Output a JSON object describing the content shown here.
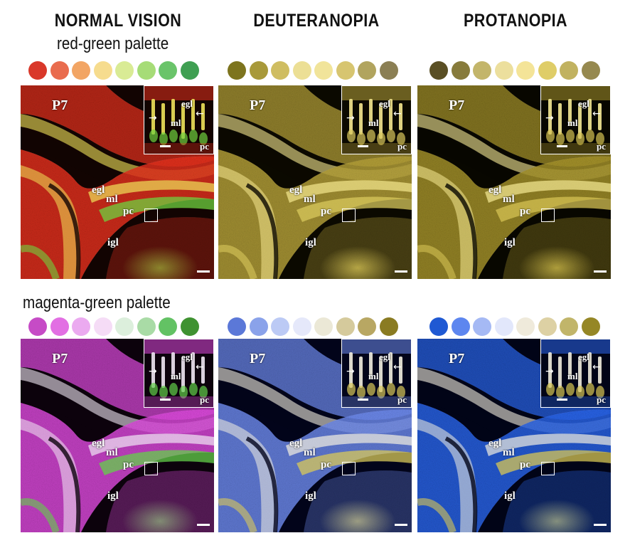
{
  "columns": [
    {
      "title": "NORMAL VISION"
    },
    {
      "title": "DEUTERANOPIA"
    },
    {
      "title": "PROTANOPIA"
    }
  ],
  "palettes": [
    {
      "label": "red-green palette",
      "swatches": [
        [
          "#d9382a",
          "#e96c4e",
          "#f2a564",
          "#f6dc8e",
          "#d9eb95",
          "#a6dc77",
          "#6ac46a",
          "#3f9f52"
        ],
        [
          "#7d741e",
          "#a8993a",
          "#cfbd61",
          "#ecdf95",
          "#f1e49a",
          "#d7c570",
          "#b1a45e",
          "#8b7f54"
        ],
        [
          "#5a4f24",
          "#877b3b",
          "#c3b56a",
          "#ecdf9d",
          "#f4e498",
          "#dfcd68",
          "#c1b260",
          "#96894f"
        ]
      ],
      "tints": [
        {
          "bg": "#120402",
          "a": "#e8321d",
          "b": "#6fd23f",
          "mix": "#f0e35a"
        },
        {
          "bg": "#0b0900",
          "a": "#b9a43a",
          "b": "#d8c85c",
          "mix": "#f5e88f"
        },
        {
          "bg": "#080700",
          "a": "#a9962c",
          "b": "#d4c253",
          "mix": "#f7eb96"
        }
      ]
    },
    {
      "label": "magenta-green palette",
      "swatches": [
        [
          "#c64bc6",
          "#e26fe3",
          "#ebaaf0",
          "#f5dcf6",
          "#dcefdc",
          "#a9dba6",
          "#63c264",
          "#3f9231"
        ],
        [
          "#5b78d8",
          "#8aa2ea",
          "#bccaf5",
          "#e5e8fa",
          "#ebe8d6",
          "#d5ca9c",
          "#b8a763",
          "#8a7b22"
        ],
        [
          "#1f59d3",
          "#5d86ef",
          "#a5b9f4",
          "#e2e7fb",
          "#efeadb",
          "#ddd1a4",
          "#c1b56a",
          "#958726"
        ]
      ],
      "tints": [
        {
          "bg": "#0c020c",
          "a": "#e04be0",
          "b": "#63d04a",
          "mix": "#f0e7f3"
        },
        {
          "bg": "#02041a",
          "a": "#6f8cf0",
          "b": "#d8c85a",
          "mix": "#f3efe0"
        },
        {
          "bg": "#010417",
          "a": "#2b66ec",
          "b": "#d7c654",
          "mix": "#f1edde"
        }
      ]
    }
  ],
  "panel_labels": {
    "stage": "P7",
    "egl": "egl",
    "ml": "ml",
    "pc": "pc",
    "igl": "igl",
    "inset_egl": "egl",
    "inset_ml": "ml",
    "inset_pc": "pc"
  }
}
